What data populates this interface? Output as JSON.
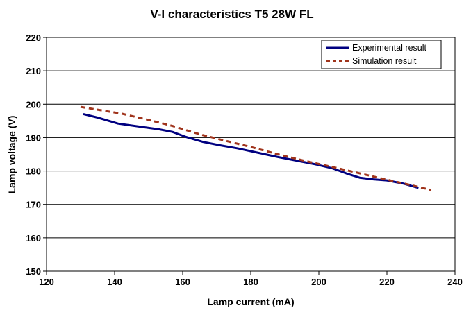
{
  "chart_data": {
    "type": "line",
    "title": "V-I characteristics T5 28W FL",
    "xlabel": "Lamp current (mA)",
    "ylabel": "Lamp voltage (V)",
    "xlim": [
      120,
      240
    ],
    "ylim": [
      150,
      220
    ],
    "xticks": [
      120,
      140,
      160,
      180,
      200,
      220,
      240
    ],
    "yticks": [
      150,
      160,
      170,
      180,
      190,
      200,
      210,
      220
    ],
    "grid": "horizontal",
    "legend": "top-right",
    "series": [
      {
        "name": "Experimental result",
        "color": "#000080",
        "style": "solid",
        "x": [
          131,
          135,
          141,
          148,
          153,
          157,
          161,
          166,
          171,
          176,
          182,
          188,
          194,
          199,
          204,
          208,
          212,
          216,
          220,
          225,
          229
        ],
        "y": [
          197,
          196,
          194.2,
          193.2,
          192.5,
          191.7,
          190.2,
          188.7,
          187.7,
          186.8,
          185.5,
          184.2,
          183,
          182,
          180.8,
          179.3,
          178,
          177.5,
          177.2,
          176.2,
          175
        ]
      },
      {
        "name": "Simulation result",
        "color": "#A0341C",
        "style": "dashed",
        "x": [
          130,
          142,
          150,
          157,
          165,
          172,
          180,
          188,
          196,
          204,
          212,
          220,
          227,
          233
        ],
        "y": [
          199.2,
          197.2,
          195.3,
          193.5,
          191,
          189.2,
          187.2,
          185,
          183,
          181.2,
          179.3,
          177.4,
          175.8,
          174.3
        ]
      }
    ]
  }
}
